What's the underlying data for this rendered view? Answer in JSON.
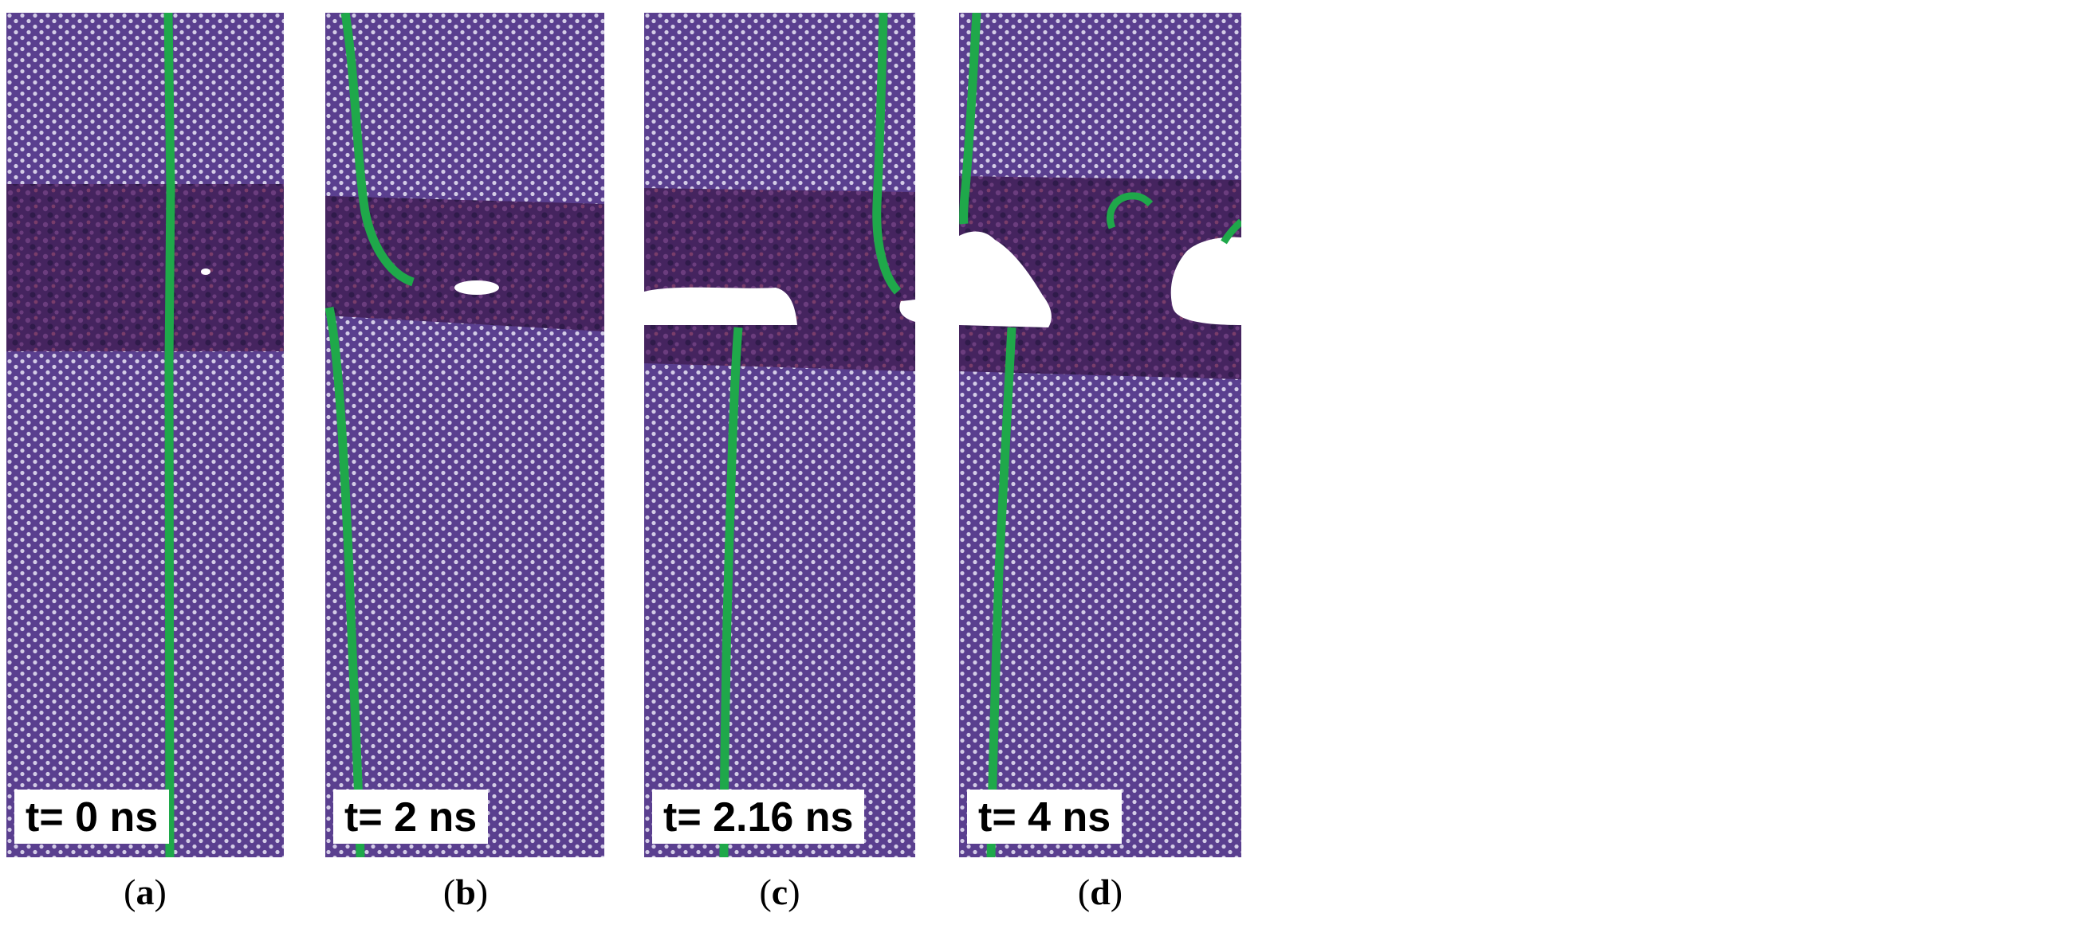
{
  "colors": {
    "crystal": "#5a3f8f",
    "lattice_dot": "#d3cce6",
    "amorphous": "#45245f",
    "boundary": "#1fa84a",
    "crack": "#ffffff"
  },
  "panels": [
    {
      "id": "a",
      "time_label": "t= 0 ns",
      "caption": "a"
    },
    {
      "id": "b",
      "time_label": "t= 2 ns",
      "caption": "b"
    },
    {
      "id": "c",
      "time_label": "t= 2.16 ns",
      "caption": "c"
    },
    {
      "id": "d",
      "time_label": "t= 4 ns",
      "caption": "d"
    }
  ]
}
